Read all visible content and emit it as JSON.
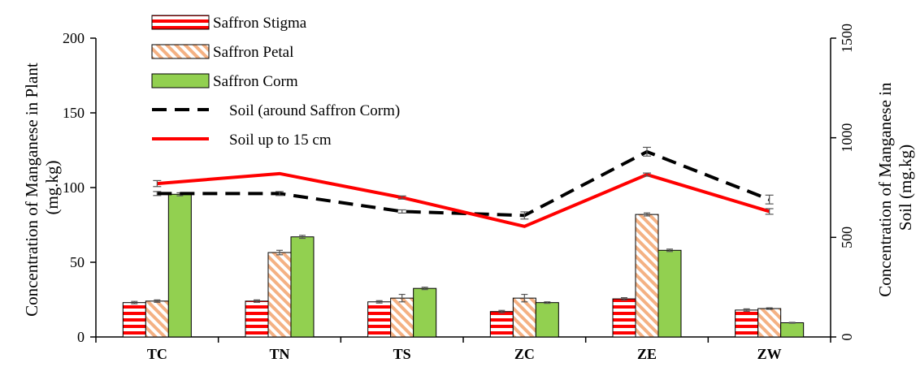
{
  "chart_data": {
    "type": "bar",
    "title": "",
    "categories": [
      "TC",
      "TN",
      "TS",
      "ZC",
      "ZE",
      "ZW"
    ],
    "ylabel_left": [
      "Concentration of Manganese in Plant",
      "(mg.kg)"
    ],
    "ylabel_right": [
      "Concentration of Manganese in",
      "Soil  (mg.kg)"
    ],
    "ylim_left": [
      0,
      200
    ],
    "yticks_left": [
      0,
      50,
      100,
      150,
      200
    ],
    "ylim_right": [
      0,
      1500
    ],
    "yticks_right": [
      0,
      500,
      1000,
      1500
    ],
    "grid": false,
    "legend_position": "top-left",
    "bar_series": [
      {
        "name": "Saffron Stigma",
        "axis": "left",
        "pattern": "red-white-horizontal-stripes",
        "color": "#ff0000",
        "values": [
          23,
          24,
          23.5,
          17,
          25.5,
          18
        ],
        "errors": [
          0.8,
          0.8,
          0.8,
          0.8,
          0.8,
          0.8
        ]
      },
      {
        "name": "Saffron Petal",
        "axis": "left",
        "pattern": "peach-diagonal-stripes",
        "color": "#f4b183",
        "values": [
          24,
          56.5,
          26,
          26,
          82,
          19
        ],
        "errors": [
          0.8,
          1.5,
          2.5,
          2.5,
          1.0,
          0.5
        ]
      },
      {
        "name": "Saffron Corm",
        "axis": "left",
        "pattern": "solid",
        "color": "#92d050",
        "values": [
          95.5,
          67,
          32.5,
          23,
          58,
          9.5
        ],
        "errors": [
          1.0,
          1.0,
          0.8,
          0.5,
          0.8,
          0.3
        ]
      }
    ],
    "line_series": [
      {
        "name": "Soil (around Saffron Corm)",
        "axis": "right",
        "style": "dashed",
        "color": "#000000",
        "values": [
          720,
          720,
          630,
          610,
          930,
          690
        ],
        "errors": [
          10,
          10,
          8,
          18,
          22,
          22
        ]
      },
      {
        "name": "Soil up to 15 cm",
        "axis": "right",
        "style": "solid",
        "color": "#ff0000",
        "values": [
          770,
          820,
          700,
          555,
          815,
          630
        ],
        "errors": [
          15,
          0,
          8,
          0,
          8,
          14
        ]
      }
    ]
  }
}
